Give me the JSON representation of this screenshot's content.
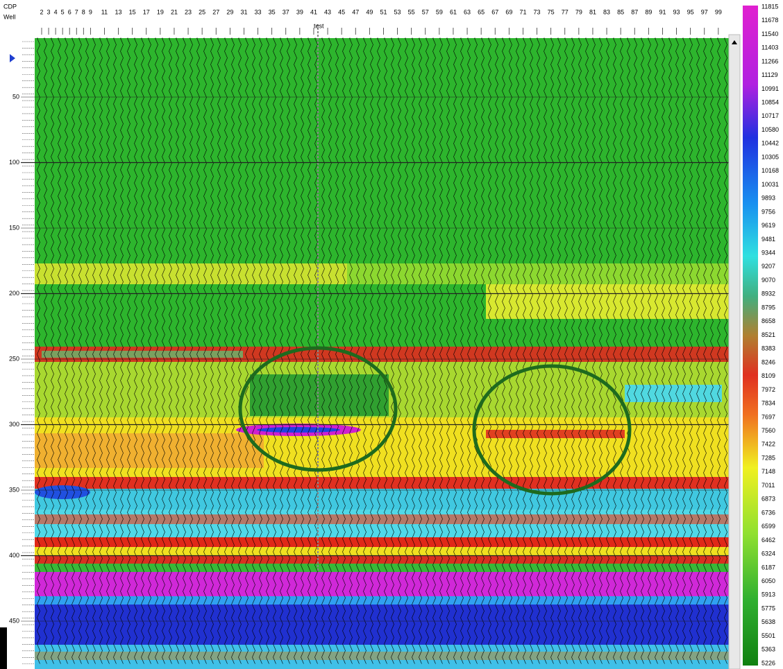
{
  "header": {
    "row_labels": [
      "CDP",
      "Well"
    ],
    "well_label": "test",
    "cdp_ticks": [
      2,
      3,
      4,
      5,
      6,
      7,
      8,
      9,
      11,
      13,
      15,
      17,
      19,
      21,
      23,
      25,
      27,
      29,
      31,
      33,
      35,
      37,
      39,
      41,
      43,
      45,
      47,
      49,
      51,
      53,
      55,
      57,
      59,
      61,
      63,
      65,
      67,
      69,
      71,
      73,
      75,
      77,
      79,
      81,
      83,
      85,
      87,
      89,
      91,
      93,
      95,
      97,
      99
    ]
  },
  "depth_axis": {
    "ticks": [
      50,
      100,
      150,
      200,
      250,
      300,
      350,
      400,
      450
    ]
  },
  "color_scale": {
    "labels": [
      11815,
      11678,
      11540,
      11403,
      11266,
      11129,
      10991,
      10854,
      10717,
      10580,
      10442,
      10305,
      10168,
      10031,
      9893,
      9756,
      9619,
      9481,
      9344,
      9207,
      9070,
      8932,
      8795,
      8658,
      8521,
      8383,
      8246,
      8109,
      7972,
      7834,
      7697,
      7560,
      7422,
      7285,
      7148,
      7011,
      6873,
      6736,
      6599,
      6462,
      6324,
      6187,
      6050,
      5913,
      5775,
      5638,
      5501,
      5363,
      5226
    ]
  }
}
